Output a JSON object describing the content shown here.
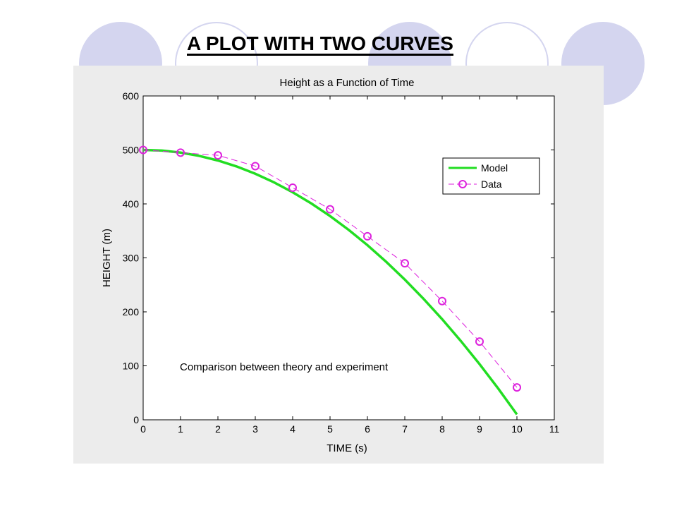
{
  "slide": {
    "title": "A PLOT WITH TWO CURVES"
  },
  "colors": {
    "decoration": "#d4d5ef",
    "figure_background": "#ececec",
    "model": "#22dd22",
    "data": "#dd22dd"
  },
  "chart_data": {
    "type": "line",
    "title": "Height as a Function of Time",
    "xlabel": "TIME (s)",
    "ylabel": "HEIGHT (m)",
    "xlim": [
      0,
      11
    ],
    "ylim": [
      0,
      600
    ],
    "xticks": [
      0,
      1,
      2,
      3,
      4,
      5,
      6,
      7,
      8,
      9,
      10,
      11
    ],
    "yticks": [
      0,
      100,
      200,
      300,
      400,
      500,
      600
    ],
    "grid": false,
    "legend_position": "top-right",
    "annotation": "Comparison between theory and experiment",
    "series": [
      {
        "name": "Model",
        "style": "solid",
        "marker": "none",
        "x": [
          0,
          0.5,
          1,
          1.5,
          2,
          2.5,
          3,
          3.5,
          4,
          4.5,
          5,
          5.5,
          6,
          6.5,
          7,
          7.5,
          8,
          8.5,
          9,
          9.5,
          10
        ],
        "values": [
          500,
          498.8,
          495.1,
          489.0,
          480.4,
          469.4,
          455.9,
          440.0,
          421.6,
          400.8,
          377.5,
          351.8,
          323.6,
          292.9,
          259.8,
          224.3,
          186.4,
          146.0,
          103.2,
          57.9,
          10.0
        ]
      },
      {
        "name": "Data",
        "style": "dashed",
        "marker": "circle",
        "x": [
          0,
          1,
          2,
          3,
          4,
          5,
          6,
          7,
          8,
          9,
          10
        ],
        "values": [
          500,
          495,
          490,
          470,
          430,
          390,
          340,
          290,
          220,
          145,
          60
        ]
      }
    ]
  }
}
